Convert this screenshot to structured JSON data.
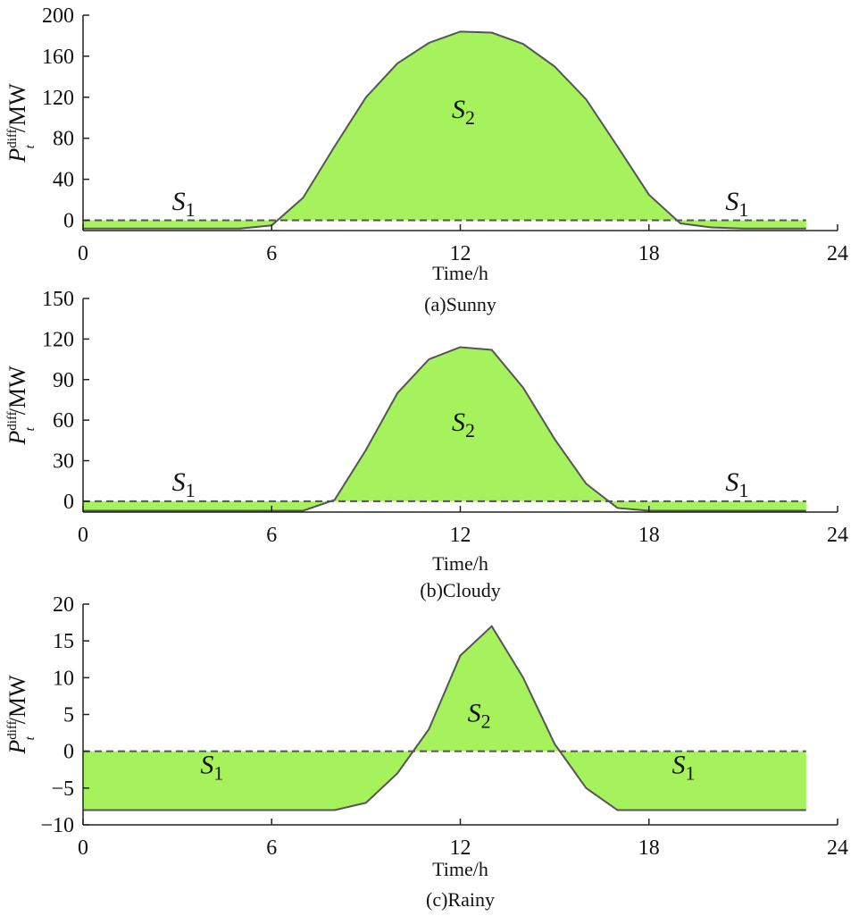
{
  "chart_data": [
    {
      "type": "area",
      "caption": "(a)Sunny",
      "xlabel": "Time/h",
      "ylabel": {
        "var": "P",
        "sup": "diff",
        "sub": "t",
        "unit": "/MW"
      },
      "xlim": [
        0,
        24
      ],
      "ylim": [
        -10,
        200
      ],
      "xticks": [
        0,
        6,
        12,
        18,
        24
      ],
      "yticks": [
        0,
        40,
        80,
        120,
        160,
        200
      ],
      "x": [
        0,
        1,
        2,
        3,
        4,
        5,
        6,
        7,
        8,
        9,
        10,
        11,
        12,
        13,
        14,
        15,
        16,
        17,
        18,
        19,
        20,
        21,
        22,
        23
      ],
      "values": [
        -8,
        -8,
        -8,
        -8,
        -8,
        -8,
        -5,
        22,
        72,
        120,
        153,
        173,
        184,
        183,
        172,
        150,
        118,
        72,
        25,
        -3,
        -7,
        -8,
        -8,
        -8
      ],
      "reference_line": 0,
      "fill_color": "#a6f25c",
      "line_color": "#555555",
      "annotations": [
        {
          "text": "S",
          "sub": "1",
          "x": 3.2,
          "y": 10
        },
        {
          "text": "S",
          "sub": "2",
          "x": 12.1,
          "y": 100
        },
        {
          "text": "S",
          "sub": "1",
          "x": 20.8,
          "y": 10
        }
      ]
    },
    {
      "type": "area",
      "caption": "(b)Cloudy",
      "xlabel": "Time/h",
      "ylabel": {
        "var": "P",
        "sup": "diff",
        "sub": "t",
        "unit": "/MW"
      },
      "xlim": [
        0,
        24
      ],
      "ylim": [
        -8,
        150
      ],
      "xticks": [
        0,
        6,
        12,
        18,
        24
      ],
      "yticks": [
        0,
        30,
        60,
        90,
        120,
        150
      ],
      "x": [
        0,
        1,
        2,
        3,
        4,
        5,
        6,
        7,
        8,
        9,
        10,
        11,
        12,
        13,
        14,
        15,
        16,
        17,
        18,
        19,
        20,
        21,
        22,
        23
      ],
      "values": [
        -7,
        -7,
        -7,
        -7,
        -7,
        -7,
        -7,
        -7,
        1,
        38,
        80,
        105,
        114,
        112,
        84,
        46,
        13,
        -5,
        -7,
        -7,
        -7,
        -7,
        -7,
        -7
      ],
      "reference_line": 0,
      "fill_color": "#a6f25c",
      "line_color": "#555555",
      "annotations": [
        {
          "text": "S",
          "sub": "1",
          "x": 3.2,
          "y": 8
        },
        {
          "text": "S",
          "sub": "2",
          "x": 12.1,
          "y": 52
        },
        {
          "text": "S",
          "sub": "1",
          "x": 20.8,
          "y": 8
        }
      ]
    },
    {
      "type": "area",
      "caption": "(c)Rainy",
      "xlabel": "Time/h",
      "ylabel": {
        "var": "P",
        "sup": "diff",
        "sub": "t",
        "unit": "/MW"
      },
      "xlim": [
        0,
        24
      ],
      "ylim": [
        -10,
        20
      ],
      "xticks": [
        0,
        6,
        12,
        18,
        24
      ],
      "yticks": [
        -10,
        -5,
        0,
        5,
        10,
        15,
        20
      ],
      "x": [
        0,
        1,
        2,
        3,
        4,
        5,
        6,
        7,
        8,
        9,
        10,
        11,
        12,
        13,
        14,
        15,
        16,
        17,
        18,
        19,
        20,
        21,
        22,
        23
      ],
      "values": [
        -8,
        -8,
        -8,
        -8,
        -8,
        -8,
        -8,
        -8,
        -8,
        -7,
        -3,
        3,
        13,
        17,
        10,
        1,
        -5,
        -8,
        -8,
        -8,
        -8,
        -8,
        -8,
        -8
      ],
      "reference_line": 0,
      "fill_color": "#a6f25c",
      "line_color": "#555555",
      "annotations": [
        {
          "text": "S",
          "sub": "1",
          "x": 4.1,
          "y": -3
        },
        {
          "text": "S",
          "sub": "2",
          "x": 12.6,
          "y": 4
        },
        {
          "text": "S",
          "sub": "1",
          "x": 19.1,
          "y": -3
        }
      ]
    }
  ]
}
